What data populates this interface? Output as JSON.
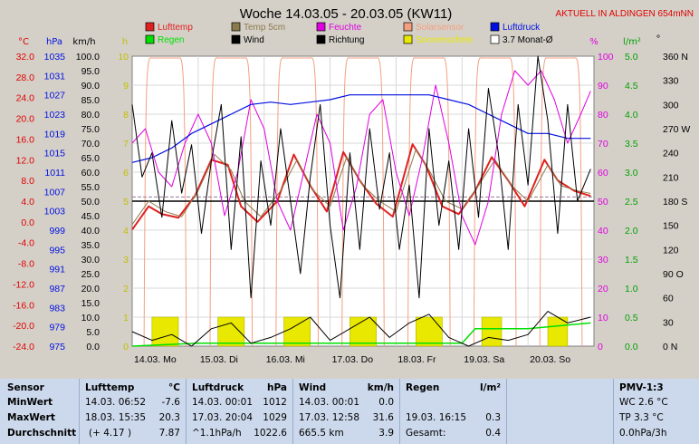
{
  "header": {
    "title": "Woche 14.03.05 - 20.03.05 (KW11)",
    "live_link": "AKTUELL IN ALDINGEN 654mNN"
  },
  "legend": [
    {
      "label": "Lufttemp",
      "color": "#e02020"
    },
    {
      "label": "Temp 5cm",
      "color": "#8b7a4a"
    },
    {
      "label": "Feuchte",
      "color": "#e000e0"
    },
    {
      "label": "Solarsensor",
      "color": "#f4a080"
    },
    {
      "label": "Luftdruck",
      "color": "#0010e0"
    },
    {
      "label": "Regen",
      "color": "#00e000"
    },
    {
      "label": "Wind",
      "color": "#000000"
    },
    {
      "label": "Richtung",
      "color": "#000000"
    },
    {
      "label": "Sonnenschein",
      "color": "#e8e800"
    },
    {
      "label": "3.7 Monat-Ø",
      "color": "#000000"
    }
  ],
  "axes_units": {
    "temp": "°C",
    "pressure": "hPa",
    "wind": "km/h",
    "sun": "h",
    "humidity": "%",
    "rain": "l/m²",
    "direction": "°"
  },
  "chart_data": {
    "type": "line",
    "x_labels": [
      "14.03. Mo",
      "15.03. Di",
      "16.03. Mi",
      "17.03. Do",
      "18.03. Fr",
      "19.03. Sa",
      "20.03. So"
    ],
    "axes": {
      "temp": {
        "min": -24,
        "max": 32,
        "ticks": [
          "32.0",
          "28.0",
          "24.0",
          "20.0",
          "16.0",
          "12.0",
          "8.0",
          "4.0",
          "0.0",
          "-4.0",
          "-8.0",
          "-12.0",
          "-16.0",
          "-20.0",
          "-24.0"
        ]
      },
      "pressure": {
        "min": 975,
        "max": 1035,
        "ticks": [
          "1035",
          "1031",
          "1027",
          "1023",
          "1019",
          "1015",
          "1011",
          "1007",
          "1003",
          "999",
          "995",
          "991",
          "987",
          "983",
          "979",
          "975"
        ]
      },
      "wind": {
        "min": 0,
        "max": 100,
        "ticks": [
          "100.0",
          "95.0",
          "90.0",
          "85.0",
          "80.0",
          "75.0",
          "70.0",
          "65.0",
          "60.0",
          "55.0",
          "50.0",
          "45.0",
          "40.0",
          "35.0",
          "30.0",
          "25.0",
          "20.0",
          "15.0",
          "10.0",
          "5.0",
          "0.0"
        ]
      },
      "sun": {
        "min": 0,
        "max": 10,
        "ticks": [
          "10",
          "9",
          "8",
          "7",
          "6",
          "5",
          "4",
          "3",
          "2",
          "1",
          "0"
        ]
      },
      "humidity": {
        "min": 0,
        "max": 100,
        "ticks": [
          "100",
          "90",
          "80",
          "70",
          "60",
          "50",
          "40",
          "30",
          "20",
          "10",
          "0"
        ]
      },
      "rain": {
        "min": 0,
        "max": 5,
        "ticks": [
          "5.0",
          "4.5",
          "4.0",
          "3.5",
          "3.0",
          "2.5",
          "2.0",
          "1.5",
          "1.0",
          "0.5",
          "0.0"
        ]
      },
      "direction": {
        "min": 0,
        "max": 360,
        "ticks": [
          "360 N",
          "330",
          "300",
          "270 W",
          "240",
          "210",
          "180 S",
          "150",
          "120",
          "90 O",
          "60",
          "30",
          "0 N"
        ]
      }
    },
    "series": [
      {
        "name": "Lufttemp",
        "axis": "temp",
        "color": "#e02020",
        "points": [
          [
            0,
            -1.5
          ],
          [
            0.25,
            3
          ],
          [
            0.45,
            1.5
          ],
          [
            0.7,
            0.8
          ],
          [
            0.95,
            5
          ],
          [
            1.2,
            12
          ],
          [
            1.45,
            11
          ],
          [
            1.65,
            3
          ],
          [
            1.9,
            0
          ],
          [
            2.2,
            4
          ],
          [
            2.45,
            13
          ],
          [
            2.7,
            7
          ],
          [
            2.95,
            2
          ],
          [
            3.2,
            13.5
          ],
          [
            3.45,
            8
          ],
          [
            3.7,
            3.5
          ],
          [
            3.95,
            1
          ],
          [
            4.25,
            15
          ],
          [
            4.45,
            11
          ],
          [
            4.7,
            3
          ],
          [
            4.95,
            1.5
          ],
          [
            5.2,
            6
          ],
          [
            5.45,
            12.5
          ],
          [
            5.7,
            8
          ],
          [
            5.95,
            3
          ],
          [
            6.25,
            12
          ],
          [
            6.45,
            8
          ],
          [
            6.7,
            6
          ],
          [
            6.95,
            5
          ]
        ]
      },
      {
        "name": "Temp 5cm",
        "axis": "temp",
        "color": "#8b7a4a",
        "points": [
          [
            0,
            -0.5
          ],
          [
            0.25,
            4
          ],
          [
            0.5,
            2
          ],
          [
            0.75,
            1
          ],
          [
            1.0,
            6
          ],
          [
            1.25,
            13
          ],
          [
            1.5,
            10
          ],
          [
            1.7,
            4
          ],
          [
            1.95,
            1
          ],
          [
            2.25,
            6
          ],
          [
            2.5,
            12
          ],
          [
            2.75,
            6
          ],
          [
            3.0,
            3
          ],
          [
            3.25,
            12.5
          ],
          [
            3.5,
            7
          ],
          [
            3.75,
            4
          ],
          [
            4.0,
            2
          ],
          [
            4.3,
            14
          ],
          [
            4.5,
            10
          ],
          [
            4.75,
            4
          ],
          [
            5.0,
            2.5
          ],
          [
            5.25,
            7
          ],
          [
            5.5,
            12
          ],
          [
            5.75,
            7
          ],
          [
            6.0,
            4
          ],
          [
            6.3,
            11
          ],
          [
            6.5,
            7
          ],
          [
            6.75,
            6
          ],
          [
            6.95,
            5.5
          ]
        ]
      },
      {
        "name": "Feuchte",
        "axis": "humidity",
        "color": "#e000e0",
        "points": [
          [
            0,
            70
          ],
          [
            0.2,
            75
          ],
          [
            0.4,
            60
          ],
          [
            0.6,
            55
          ],
          [
            0.8,
            70
          ],
          [
            1.0,
            80
          ],
          [
            1.2,
            70
          ],
          [
            1.4,
            45
          ],
          [
            1.6,
            60
          ],
          [
            1.8,
            85
          ],
          [
            2.0,
            75
          ],
          [
            2.2,
            50
          ],
          [
            2.4,
            40
          ],
          [
            2.6,
            60
          ],
          [
            2.8,
            80
          ],
          [
            3.0,
            70
          ],
          [
            3.2,
            40
          ],
          [
            3.4,
            55
          ],
          [
            3.6,
            80
          ],
          [
            3.8,
            85
          ],
          [
            4.0,
            60
          ],
          [
            4.2,
            45
          ],
          [
            4.4,
            65
          ],
          [
            4.6,
            90
          ],
          [
            4.8,
            70
          ],
          [
            5.0,
            45
          ],
          [
            5.2,
            35
          ],
          [
            5.4,
            50
          ],
          [
            5.6,
            80
          ],
          [
            5.8,
            95
          ],
          [
            6.0,
            90
          ],
          [
            6.2,
            95
          ],
          [
            6.4,
            85
          ],
          [
            6.6,
            70
          ],
          [
            6.8,
            80
          ],
          [
            6.95,
            88
          ]
        ]
      },
      {
        "name": "Luftdruck",
        "axis": "pressure",
        "color": "#0010e0",
        "points": [
          [
            0,
            1013
          ],
          [
            0.3,
            1014
          ],
          [
            0.6,
            1016
          ],
          [
            0.9,
            1019
          ],
          [
            1.2,
            1021
          ],
          [
            1.5,
            1023
          ],
          [
            1.8,
            1025
          ],
          [
            2.1,
            1025.5
          ],
          [
            2.4,
            1025
          ],
          [
            2.7,
            1025.5
          ],
          [
            3.0,
            1026
          ],
          [
            3.3,
            1027
          ],
          [
            3.6,
            1027
          ],
          [
            3.9,
            1027
          ],
          [
            4.2,
            1027
          ],
          [
            4.5,
            1027
          ],
          [
            4.8,
            1026
          ],
          [
            5.1,
            1025
          ],
          [
            5.4,
            1023
          ],
          [
            5.7,
            1021
          ],
          [
            6.0,
            1019
          ],
          [
            6.3,
            1019
          ],
          [
            6.6,
            1018
          ],
          [
            6.95,
            1018
          ]
        ]
      },
      {
        "name": "Wind",
        "axis": "wind",
        "color": "#000000",
        "points": [
          [
            0,
            5
          ],
          [
            0.3,
            2
          ],
          [
            0.6,
            4
          ],
          [
            0.9,
            0
          ],
          [
            1.2,
            6
          ],
          [
            1.5,
            8
          ],
          [
            1.8,
            1
          ],
          [
            2.1,
            3
          ],
          [
            2.4,
            6
          ],
          [
            2.7,
            10
          ],
          [
            3.0,
            2
          ],
          [
            3.3,
            6
          ],
          [
            3.6,
            10
          ],
          [
            3.9,
            3
          ],
          [
            4.2,
            8
          ],
          [
            4.5,
            11
          ],
          [
            4.8,
            3
          ],
          [
            5.1,
            0
          ],
          [
            5.4,
            3
          ],
          [
            5.7,
            2
          ],
          [
            6.0,
            4
          ],
          [
            6.3,
            12
          ],
          [
            6.6,
            8
          ],
          [
            6.95,
            10
          ]
        ]
      },
      {
        "name": "Richtung",
        "axis": "direction",
        "color": "#000000",
        "points": [
          [
            0,
            300
          ],
          [
            0.15,
            210
          ],
          [
            0.3,
            240
          ],
          [
            0.45,
            160
          ],
          [
            0.6,
            280
          ],
          [
            0.75,
            190
          ],
          [
            0.9,
            250
          ],
          [
            1.05,
            140
          ],
          [
            1.2,
            230
          ],
          [
            1.35,
            300
          ],
          [
            1.5,
            120
          ],
          [
            1.65,
            260
          ],
          [
            1.8,
            60
          ],
          [
            1.95,
            230
          ],
          [
            2.1,
            150
          ],
          [
            2.25,
            270
          ],
          [
            2.4,
            180
          ],
          [
            2.55,
            90
          ],
          [
            2.7,
            210
          ],
          [
            2.85,
            300
          ],
          [
            3.0,
            150
          ],
          [
            3.15,
            60
          ],
          [
            3.3,
            240
          ],
          [
            3.45,
            120
          ],
          [
            3.6,
            270
          ],
          [
            3.75,
            170
          ],
          [
            3.9,
            240
          ],
          [
            4.05,
            120
          ],
          [
            4.2,
            200
          ],
          [
            4.35,
            60
          ],
          [
            4.5,
            270
          ],
          [
            4.65,
            150
          ],
          [
            4.8,
            230
          ],
          [
            4.95,
            120
          ],
          [
            5.1,
            270
          ],
          [
            5.25,
            160
          ],
          [
            5.4,
            320
          ],
          [
            5.55,
            240
          ],
          [
            5.7,
            120
          ],
          [
            5.85,
            300
          ],
          [
            6.0,
            200
          ],
          [
            6.15,
            360
          ],
          [
            6.3,
            280
          ],
          [
            6.45,
            140
          ],
          [
            6.6,
            300
          ],
          [
            6.75,
            180
          ],
          [
            6.95,
            220
          ]
        ]
      }
    ],
    "reference_lines": [
      {
        "name": "3.7 Monat-Ø",
        "axis": "temp",
        "value": 4.0,
        "color": "#000000"
      },
      {
        "name": "",
        "axis": "temp",
        "value": 4.8,
        "color": "#9a7a9a"
      }
    ],
    "sun_blocks": [
      [
        0.3,
        0.7
      ],
      [
        1.3,
        1.7
      ],
      [
        2.3,
        2.7
      ],
      [
        3.3,
        3.7
      ],
      [
        4.3,
        4.7
      ],
      [
        5.3,
        5.6
      ],
      [
        6.3,
        6.6
      ]
    ],
    "sun_level": 1.0,
    "rain_daily": [
      [
        0,
        0
      ],
      [
        1,
        0.05
      ],
      [
        2,
        0.05
      ],
      [
        3,
        0.05
      ],
      [
        4,
        0.05
      ],
      [
        5,
        0.05
      ],
      [
        5.2,
        0.3
      ],
      [
        6,
        0.3
      ],
      [
        6.95,
        0.4
      ]
    ],
    "solar_peaks": [
      0.5,
      1.5,
      2.5,
      3.5,
      4.5,
      5.5,
      6.5
    ]
  },
  "stats": {
    "sensor": {
      "header": "Sensor",
      "rows": [
        "MinWert",
        "MaxWert",
        "Durchschnitt"
      ]
    },
    "lufttemp": {
      "header": "Lufttemp",
      "unit": "°C",
      "rows": [
        [
          "14.03.  06:52",
          "-7.6"
        ],
        [
          "18.03.  15:35",
          "20.3"
        ],
        [
          "(+ 4.17 )",
          "7.87"
        ]
      ]
    },
    "luftdruck": {
      "header": "Luftdruck",
      "unit": "hPa",
      "rows": [
        [
          "14.03.  00:01",
          "1012"
        ],
        [
          "17.03.  20:04",
          "1029"
        ],
        [
          "^1.1hPa/h",
          "1022.6"
        ]
      ]
    },
    "wind": {
      "header": "Wind",
      "unit": "km/h",
      "rows": [
        [
          "14.03.  00:01",
          "0.0"
        ],
        [
          "17.03.  12:58",
          "31.6"
        ],
        [
          "665.5 km",
          "3.9"
        ]
      ]
    },
    "regen": {
      "header": "Regen",
      "unit": "l/m²",
      "rows": [
        [
          "",
          ""
        ],
        [
          "19.03.  16:15",
          "0.3"
        ],
        [
          "Gesamt:",
          "0.4"
        ]
      ]
    },
    "pmv": {
      "header": "PMV-1:3",
      "rows": [
        "WC 2.6 °C",
        "TP 3.3 °C",
        "0.0hPa/3h"
      ]
    }
  }
}
